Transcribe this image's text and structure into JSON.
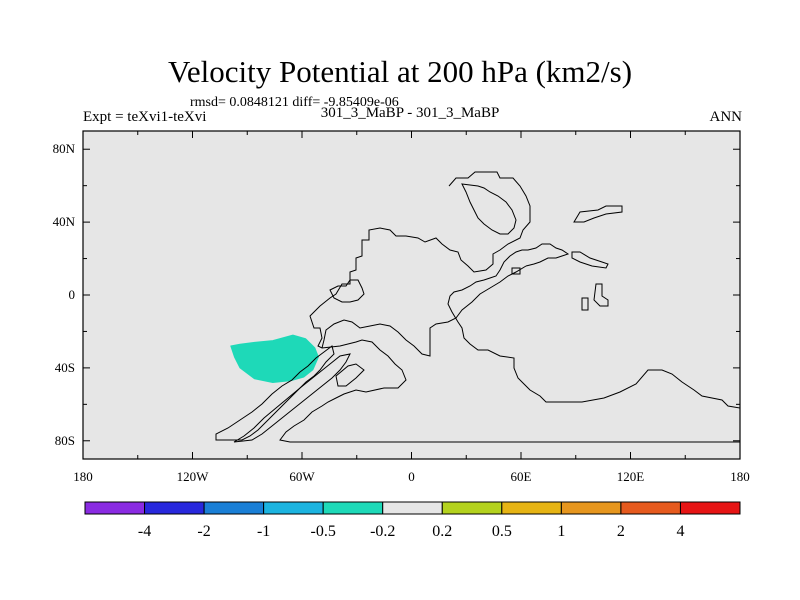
{
  "chart_data": {
    "type": "contour-map",
    "title": "Velocity Potential at 200 hPa (km2/s)",
    "stats_line": "rmsd= 0.0848121 diff= -9.85409e-06",
    "left_label": "Expt = teXvi1-teXvi",
    "center_label": "301_3_MaBP - 301_3_MaBP",
    "right_label": "ANN",
    "x_range": [
      -180,
      180
    ],
    "y_range": [
      -90,
      90
    ],
    "x_ticks": [
      {
        "value": -180,
        "label": "180"
      },
      {
        "value": -120,
        "label": "120W"
      },
      {
        "value": -60,
        "label": "60W"
      },
      {
        "value": 0,
        "label": "0"
      },
      {
        "value": 60,
        "label": "60E"
      },
      {
        "value": 120,
        "label": "120E"
      },
      {
        "value": 180,
        "label": "180"
      }
    ],
    "y_ticks": [
      {
        "value": 80,
        "label": "80N"
      },
      {
        "value": 40,
        "label": "40N"
      },
      {
        "value": 0,
        "label": "0"
      },
      {
        "value": -40,
        "label": "40S"
      },
      {
        "value": -80,
        "label": "80S"
      }
    ],
    "map_background": "#e6e6e6",
    "colorbar": {
      "colors": [
        "#8a2be2",
        "#2828dc",
        "#1a7fd6",
        "#1cb4e0",
        "#1ed9b8",
        "#e6e6e6",
        "#b4d21e",
        "#e6b414",
        "#e6961e",
        "#e65a1e",
        "#e61414"
      ],
      "labels": [
        "-4",
        "-2",
        "-1",
        "-0.5",
        "-0.2",
        "0.2",
        "0.5",
        "1",
        "2",
        "4"
      ]
    },
    "anomalies": [
      {
        "bin": "-0.5 to -0.2",
        "color": "#1ed9b8",
        "outline_lonlat": [
          [
            -99,
            -28
          ],
          [
            -94,
            -27
          ],
          [
            -86,
            -26
          ],
          [
            -76,
            -25
          ],
          [
            -65,
            -22
          ],
          [
            -58,
            -24
          ],
          [
            -53,
            -29
          ],
          [
            -51,
            -34
          ],
          [
            -54,
            -41
          ],
          [
            -59,
            -45
          ],
          [
            -66,
            -47
          ],
          [
            -76,
            -48
          ],
          [
            -86,
            -46
          ],
          [
            -94,
            -40
          ],
          [
            -97,
            -34
          ]
        ]
      }
    ]
  }
}
